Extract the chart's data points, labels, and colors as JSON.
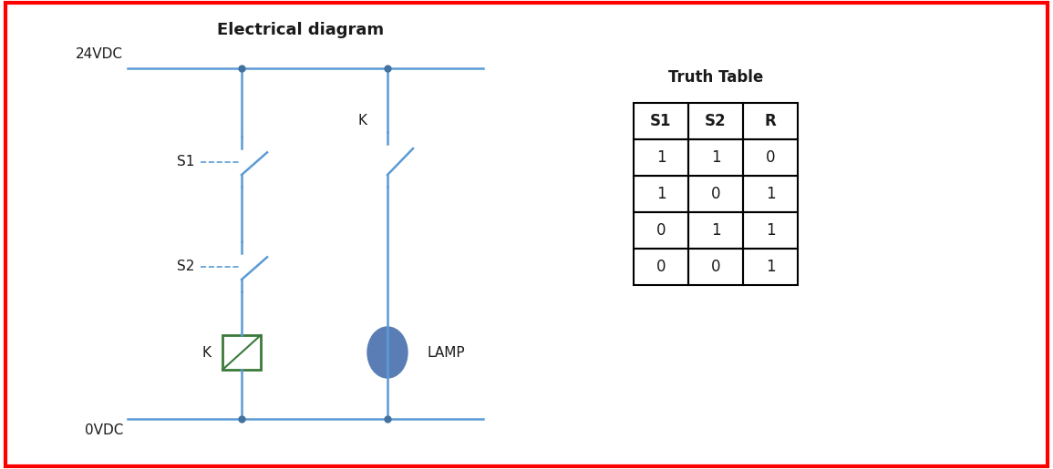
{
  "title": "Electrical diagram",
  "title_fontsize": 13,
  "title_fontweight": "bold",
  "bg_color": "#ffffff",
  "wire_color": "#5b9bd5",
  "wire_lw": 1.8,
  "dot_color": "#4472a0",
  "dot_size": 5,
  "text_color": "#1a1a1a",
  "switch_color": "#5b9bd5",
  "relay_coil_color": "#3a7a3a",
  "lamp_color": "#5b7db5",
  "truth_table_title": "Truth Table",
  "truth_table_headers": [
    "S1",
    "S2",
    "R"
  ],
  "truth_table_rows": [
    [
      "1",
      "1",
      "0"
    ],
    [
      "1",
      "0",
      "1"
    ],
    [
      "0",
      "1",
      "1"
    ],
    [
      "0",
      "0",
      "1"
    ]
  ],
  "label_24vdc": "24VDC",
  "label_0vdc": "0VDC",
  "label_s1": "S1",
  "label_s2": "S2",
  "label_k_coil": "K",
  "label_k_contact": "K",
  "label_lamp": "LAMP",
  "fig_w": 11.55,
  "fig_h": 5.15,
  "dpi": 100
}
